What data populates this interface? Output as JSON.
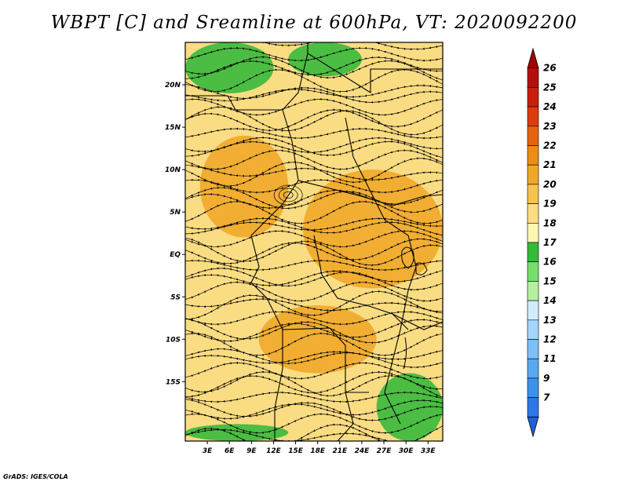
{
  "title": "WBPT [C] and Sreamline at 600hPa, VT: 2020092200",
  "credit": "GrADS: IGES/COLA",
  "map": {
    "lon_min": 0,
    "lon_max": 35,
    "lat_min": -22,
    "lat_max": 25,
    "lat_ticks": [
      {
        "value": 20,
        "label": "20N"
      },
      {
        "value": 15,
        "label": "15N"
      },
      {
        "value": 10,
        "label": "10N"
      },
      {
        "value": 5,
        "label": "5N"
      },
      {
        "value": 0,
        "label": "EQ"
      },
      {
        "value": -5,
        "label": "5S"
      },
      {
        "value": -10,
        "label": "10S"
      },
      {
        "value": -15,
        "label": "15S"
      }
    ],
    "lon_ticks": [
      {
        "value": 3,
        "label": "3E"
      },
      {
        "value": 6,
        "label": "6E"
      },
      {
        "value": 9,
        "label": "9E"
      },
      {
        "value": 12,
        "label": "12E"
      },
      {
        "value": 15,
        "label": "15E"
      },
      {
        "value": 18,
        "label": "18E"
      },
      {
        "value": 21,
        "label": "21E"
      },
      {
        "value": 24,
        "label": "24E"
      },
      {
        "value": 27,
        "label": "27E"
      },
      {
        "value": 30,
        "label": "30E"
      },
      {
        "value": 33,
        "label": "33E"
      }
    ],
    "wbpt_zones": [
      {
        "level": 17,
        "lon_range": [
          0,
          12
        ],
        "lat_range": [
          19,
          25
        ]
      },
      {
        "level": 17,
        "lon_range": [
          14,
          24
        ],
        "lat_range": [
          21,
          25
        ]
      },
      {
        "level": 17,
        "lon_range": [
          26,
          35
        ],
        "lat_range": [
          -22,
          -14
        ]
      },
      {
        "level": 17,
        "lon_range": [
          0,
          14
        ],
        "lat_range": [
          -22,
          -20
        ]
      },
      {
        "level": 21,
        "lon_range": [
          2,
          14
        ],
        "lat_range": [
          2,
          14
        ]
      },
      {
        "level": 21,
        "lon_range": [
          16,
          35
        ],
        "lat_range": [
          -4,
          10
        ]
      },
      {
        "level": 21,
        "lon_range": [
          10,
          26
        ],
        "lat_range": [
          -14,
          -6
        ]
      }
    ]
  },
  "colorbar": {
    "colors": [
      "#1e5fdc",
      "#2d78e6",
      "#3c91eb",
      "#5aa8f0",
      "#7fbff5",
      "#a5d5fa",
      "#d2ecfd",
      "#b4f0a0",
      "#78dc6e",
      "#37b93c",
      "#fff5b4",
      "#fadc82",
      "#f5c350",
      "#f0a82a",
      "#eb8c14",
      "#e6640f",
      "#dc3c0f",
      "#c81e0f",
      "#b40f0f",
      "#a00000"
    ],
    "labels": [
      "7",
      "9",
      "11",
      "12",
      "13",
      "14",
      "15",
      "16",
      "17",
      "18",
      "19",
      "20",
      "21",
      "22",
      "23",
      "24",
      "25",
      "26"
    ]
  }
}
